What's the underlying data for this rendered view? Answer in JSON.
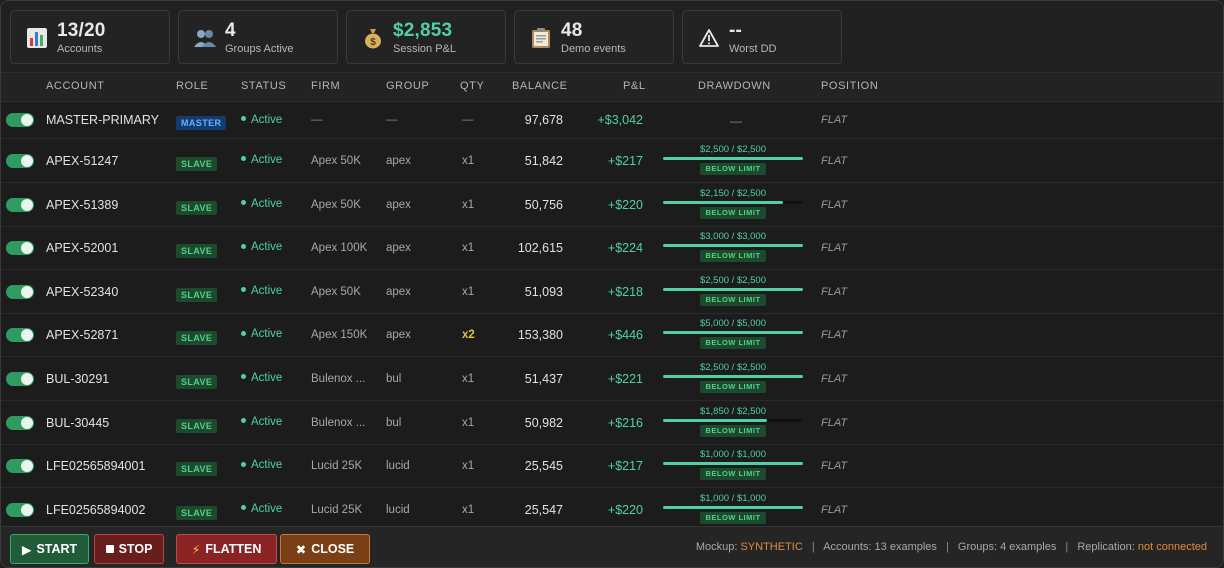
{
  "stats": [
    {
      "icon": "bar-chart-icon",
      "value": "13/20",
      "label": "Accounts"
    },
    {
      "icon": "users-icon",
      "value": "4",
      "label": "Groups Active"
    },
    {
      "icon": "money-bag-icon",
      "value": "$2,853",
      "label": "Session P&L"
    },
    {
      "icon": "clipboard-icon",
      "value": "48",
      "label": "Demo events"
    },
    {
      "icon": "warning-icon",
      "value": "--",
      "label": "Worst DD"
    }
  ],
  "columns": {
    "account": "ACCOUNT",
    "role": "ROLE",
    "status": "STATUS",
    "firm": "FIRM",
    "group": "GROUP",
    "qty": "QTY",
    "balance": "BALANCE",
    "pnl": "P&L",
    "drawdown": "DRAWDOWN",
    "position": "POSITION"
  },
  "master": {
    "account": "MASTER-PRIMARY",
    "role": "MASTER",
    "status": "Active",
    "firm": "—",
    "group": "—",
    "qty": "—",
    "balance": "97,678",
    "pnl": "+$3,042",
    "drawdown": "—",
    "position": "FLAT"
  },
  "rows": [
    {
      "account": "APEX-51247",
      "role": "SLAVE",
      "status": "Active",
      "firm": "Apex 50K",
      "group": "apex",
      "qty": "x1",
      "balance": "51,842",
      "pnl": "+$217",
      "dd_text": "$2,500 / $2,500",
      "dd_fraction": 1.0,
      "dd_label": "BELOW LIMIT",
      "position": "FLAT"
    },
    {
      "account": "APEX-51389",
      "role": "SLAVE",
      "status": "Active",
      "firm": "Apex 50K",
      "group": "apex",
      "qty": "x1",
      "balance": "50,756",
      "pnl": "+$220",
      "dd_text": "$2,150 / $2,500",
      "dd_fraction": 0.86,
      "dd_label": "BELOW LIMIT",
      "position": "FLAT"
    },
    {
      "account": "APEX-52001",
      "role": "SLAVE",
      "status": "Active",
      "firm": "Apex 100K",
      "group": "apex",
      "qty": "x1",
      "balance": "102,615",
      "pnl": "+$224",
      "dd_text": "$3,000 / $3,000",
      "dd_fraction": 1.0,
      "dd_label": "BELOW LIMIT",
      "position": "FLAT"
    },
    {
      "account": "APEX-52340",
      "role": "SLAVE",
      "status": "Active",
      "firm": "Apex 50K",
      "group": "apex",
      "qty": "x1",
      "balance": "51,093",
      "pnl": "+$218",
      "dd_text": "$2,500 / $2,500",
      "dd_fraction": 1.0,
      "dd_label": "BELOW LIMIT",
      "position": "FLAT"
    },
    {
      "account": "APEX-52871",
      "role": "SLAVE",
      "status": "Active",
      "firm": "Apex 150K",
      "group": "apex",
      "qty": "x2",
      "qty_highlight": true,
      "balance": "153,380",
      "pnl": "+$446",
      "dd_text": "$5,000 / $5,000",
      "dd_fraction": 1.0,
      "dd_label": "BELOW LIMIT",
      "position": "FLAT"
    },
    {
      "account": "BUL-30291",
      "role": "SLAVE",
      "status": "Active",
      "firm": "Bulenox ...",
      "group": "bul",
      "qty": "x1",
      "balance": "51,437",
      "pnl": "+$221",
      "dd_text": "$2,500 / $2,500",
      "dd_fraction": 1.0,
      "dd_label": "BELOW LIMIT",
      "position": "FLAT"
    },
    {
      "account": "BUL-30445",
      "role": "SLAVE",
      "status": "Active",
      "firm": "Bulenox ...",
      "group": "bul",
      "qty": "x1",
      "balance": "50,982",
      "pnl": "+$216",
      "dd_text": "$1,850 / $2,500",
      "dd_fraction": 0.74,
      "dd_label": "BELOW LIMIT",
      "position": "FLAT"
    },
    {
      "account": "LFE02565894001",
      "role": "SLAVE",
      "status": "Active",
      "firm": "Lucid 25K",
      "group": "lucid",
      "qty": "x1",
      "balance": "25,545",
      "pnl": "+$217",
      "dd_text": "$1,000 / $1,000",
      "dd_fraction": 1.0,
      "dd_label": "BELOW LIMIT",
      "position": "FLAT"
    },
    {
      "account": "LFE02565894002",
      "role": "SLAVE",
      "status": "Active",
      "firm": "Lucid 25K",
      "group": "lucid",
      "qty": "x1",
      "balance": "25,547",
      "pnl": "+$220",
      "dd_text": "$1,000 / $1,000",
      "dd_fraction": 1.0,
      "dd_label": "BELOW LIMIT",
      "position": "FLAT"
    }
  ],
  "buttons": {
    "start": "START",
    "stop": "STOP",
    "flatten": "FLATTEN",
    "close": "CLOSE"
  },
  "footer": {
    "mockup_label": "Mockup:",
    "mockup_value": "SYNTHETIC",
    "accounts": "Accounts: 13 examples",
    "groups": "Groups: 4 examples",
    "replication_label": "Replication:",
    "replication_value": "not connected"
  },
  "colors": {
    "accent_green": "#4fd1a5",
    "toggle_on": "#2f9b61",
    "orange": "#e08a3a"
  }
}
